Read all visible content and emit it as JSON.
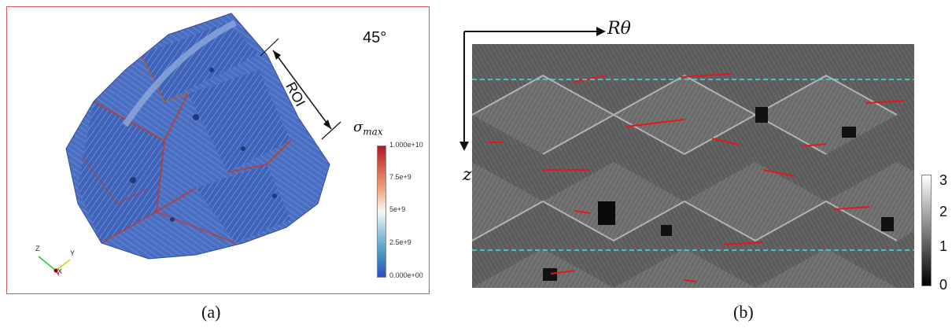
{
  "panel_a": {
    "angle_label": "45°",
    "roi_label": "ROI",
    "sigma_symbol": "σ",
    "sigma_subscript": "max",
    "colorbar_ticks": [
      "1.000e+10",
      "7.5e+9",
      "5e+9",
      "2.5e+9",
      "0.000e+00"
    ],
    "axis_labels": {
      "z": "Z",
      "y": "Y",
      "x": "X"
    },
    "caption": "(a)"
  },
  "panel_b": {
    "x_label": "Rθ",
    "y_label": "z",
    "colorbar_ticks": [
      "3",
      "2",
      "1",
      "0"
    ],
    "caption": "(b)"
  }
}
